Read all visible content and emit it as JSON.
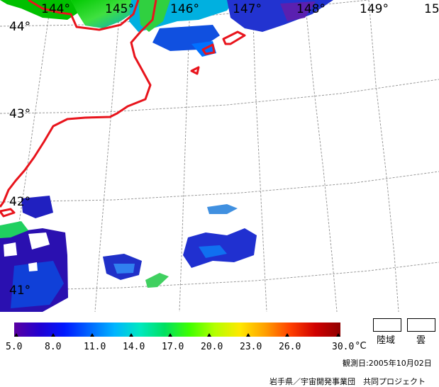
{
  "map": {
    "longitude_labels": [
      "144°",
      "145°",
      "146°",
      "147°",
      "148°",
      "149°",
      "15"
    ],
    "latitude_labels": [
      "44°",
      "43°",
      "42°",
      "41°"
    ],
    "coastline_color": "#e8141c",
    "graticule_color": "#9a9a9a",
    "layer": "sea surface temperature"
  },
  "colorbar": {
    "ticks": [
      "5.0",
      "8.0",
      "11.0",
      "14.0",
      "17.0",
      "20.0",
      "23.0",
      "26.0",
      "30.0"
    ],
    "unit": "°C",
    "colors": [
      "#5a00a0",
      "#2200d0",
      "#0018ff",
      "#0066ff",
      "#00b4ff",
      "#00e8c0",
      "#00e060",
      "#40ff00",
      "#b4ff00",
      "#ffe800",
      "#ffa000",
      "#ff4000",
      "#d00000",
      "#900000"
    ]
  },
  "legend": {
    "land_label": "陸域",
    "cloud_label": "雲"
  },
  "footer": {
    "observation_date": "観測日:2005年10月02日",
    "credit": "岩手県／宇宙開発事業団　共同プロジェクト"
  }
}
